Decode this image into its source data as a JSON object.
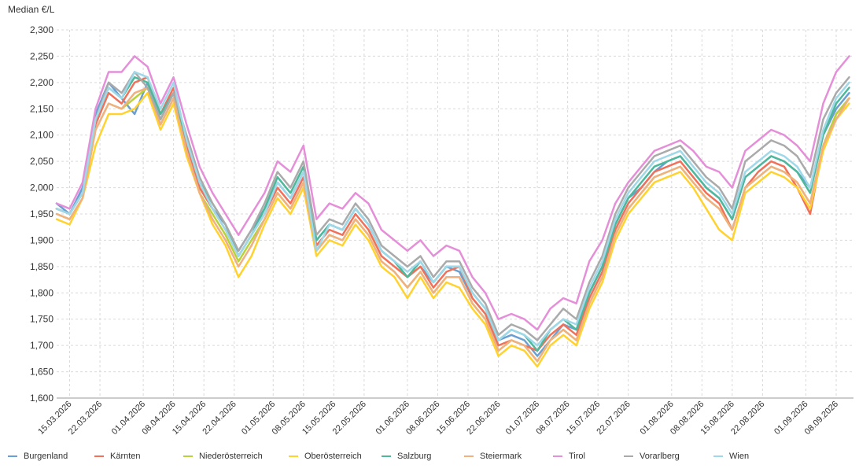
{
  "chart_data": {
    "type": "line",
    "ylabel": "Median €/L",
    "ylim": [
      1.6,
      2.3
    ],
    "yticks": [
      1.6,
      1.65,
      1.7,
      1.75,
      1.8,
      1.85,
      1.9,
      1.95,
      2.0,
      2.05,
      2.1,
      2.15,
      2.2,
      2.25,
      2.3
    ],
    "ytick_labels": [
      "1,600",
      "1,650",
      "1,700",
      "1,750",
      "1,800",
      "1,850",
      "1,900",
      "1,950",
      "2,000",
      "2,050",
      "2,100",
      "2,150",
      "2,200",
      "2,250",
      "2,300"
    ],
    "xlim": [
      "2026-03-12",
      "2026-09-12"
    ],
    "xticks": [
      "2026-03-15",
      "2026-03-22",
      "2026-04-01",
      "2026-04-08",
      "2026-04-15",
      "2026-04-22",
      "2026-05-01",
      "2026-05-08",
      "2026-05-15",
      "2026-05-22",
      "2026-06-01",
      "2026-06-08",
      "2026-06-15",
      "2026-06-22",
      "2026-07-01",
      "2026-07-08",
      "2026-07-15",
      "2026-07-22",
      "2026-08-01",
      "2026-08-08",
      "2026-08-15",
      "2026-08-22",
      "2026-09-01",
      "2026-09-08"
    ],
    "xtick_labels": [
      "15.03.2026",
      "22.03.2026",
      "01.04.2026",
      "08.04.2026",
      "15.04.2026",
      "22.04.2026",
      "01.05.2026",
      "08.05.2026",
      "15.05.2026",
      "22.05.2026",
      "01.06.2026",
      "08.06.2026",
      "15.06.2026",
      "22.06.2026",
      "01.07.2026",
      "08.07.2026",
      "15.07.2026",
      "22.07.2026",
      "01.08.2026",
      "08.08.2026",
      "15.08.2026",
      "22.08.2026",
      "01.09.2026",
      "08.09.2026"
    ],
    "grid": true,
    "legend_position": "bottom",
    "x": [
      "2026-03-12",
      "2026-03-15",
      "2026-03-18",
      "2026-03-21",
      "2026-03-24",
      "2026-03-27",
      "2026-03-30",
      "2026-04-02",
      "2026-04-05",
      "2026-04-08",
      "2026-04-11",
      "2026-04-14",
      "2026-04-17",
      "2026-04-20",
      "2026-04-23",
      "2026-04-26",
      "2026-04-29",
      "2026-05-02",
      "2026-05-05",
      "2026-05-08",
      "2026-05-11",
      "2026-05-14",
      "2026-05-17",
      "2026-05-20",
      "2026-05-23",
      "2026-05-26",
      "2026-05-29",
      "2026-06-01",
      "2026-06-04",
      "2026-06-07",
      "2026-06-10",
      "2026-06-13",
      "2026-06-16",
      "2026-06-19",
      "2026-06-22",
      "2026-06-25",
      "2026-06-28",
      "2026-07-01",
      "2026-07-04",
      "2026-07-07",
      "2026-07-10",
      "2026-07-13",
      "2026-07-16",
      "2026-07-19",
      "2026-07-22",
      "2026-07-25",
      "2026-07-28",
      "2026-07-31",
      "2026-08-03",
      "2026-08-06",
      "2026-08-09",
      "2026-08-12",
      "2026-08-15",
      "2026-08-18",
      "2026-08-21",
      "2026-08-24",
      "2026-08-27",
      "2026-08-30",
      "2026-09-02",
      "2026-09-05",
      "2026-09-08",
      "2026-09-11"
    ],
    "series": [
      {
        "name": "Burgenland",
        "color": "#6a9fd3",
        "values": [
          1.97,
          1.95,
          2.0,
          2.14,
          2.2,
          2.17,
          2.14,
          2.2,
          2.13,
          2.18,
          2.08,
          2.0,
          1.96,
          1.93,
          1.88,
          1.92,
          1.96,
          2.01,
          1.98,
          2.03,
          1.9,
          1.93,
          1.92,
          1.96,
          1.93,
          1.88,
          1.86,
          1.83,
          1.85,
          1.82,
          1.85,
          1.84,
          1.79,
          1.76,
          1.71,
          1.72,
          1.71,
          1.68,
          1.71,
          1.74,
          1.73,
          1.8,
          1.85,
          1.93,
          1.98,
          2.0,
          2.03,
          2.05,
          2.06,
          2.03,
          2.0,
          1.98,
          1.94,
          2.02,
          2.04,
          2.06,
          2.05,
          2.03,
          2.0,
          2.1,
          2.15,
          2.18
        ]
      },
      {
        "name": "Kärnten",
        "color": "#f0705a",
        "values": [
          1.96,
          1.95,
          1.99,
          2.12,
          2.18,
          2.16,
          2.2,
          2.21,
          2.14,
          2.19,
          2.08,
          2.0,
          1.96,
          1.92,
          1.87,
          1.91,
          1.95,
          2.0,
          1.97,
          2.02,
          1.89,
          1.92,
          1.91,
          1.95,
          1.92,
          1.87,
          1.85,
          1.83,
          1.85,
          1.81,
          1.84,
          1.85,
          1.79,
          1.76,
          1.7,
          1.71,
          1.7,
          1.69,
          1.72,
          1.74,
          1.72,
          1.79,
          1.84,
          1.92,
          1.97,
          2.0,
          2.03,
          2.04,
          2.05,
          2.02,
          1.99,
          1.97,
          1.92,
          2.0,
          2.03,
          2.05,
          2.04,
          2.0,
          1.95,
          2.08,
          2.14,
          2.17
        ]
      },
      {
        "name": "Niederösterreich",
        "color": "#b8d23c",
        "values": [
          1.95,
          1.94,
          1.98,
          2.11,
          2.16,
          2.15,
          2.17,
          2.19,
          2.12,
          2.17,
          2.07,
          1.99,
          1.95,
          1.91,
          1.86,
          1.9,
          1.94,
          1.99,
          1.96,
          2.01,
          1.88,
          1.91,
          1.9,
          1.94,
          1.91,
          1.86,
          1.84,
          1.81,
          1.84,
          1.8,
          1.83,
          1.83,
          1.78,
          1.75,
          1.69,
          1.71,
          1.7,
          1.67,
          1.71,
          1.73,
          1.71,
          1.78,
          1.83,
          1.91,
          1.96,
          1.99,
          2.02,
          2.03,
          2.04,
          2.01,
          1.98,
          1.96,
          1.92,
          2.0,
          2.02,
          2.04,
          2.03,
          2.01,
          1.97,
          2.08,
          2.14,
          2.17
        ]
      },
      {
        "name": "Oberösterreich",
        "color": "#ffd22e",
        "values": [
          1.94,
          1.93,
          1.98,
          2.08,
          2.14,
          2.14,
          2.15,
          2.18,
          2.11,
          2.16,
          2.06,
          1.99,
          1.93,
          1.89,
          1.83,
          1.87,
          1.93,
          1.98,
          1.95,
          2.0,
          1.87,
          1.9,
          1.89,
          1.93,
          1.9,
          1.85,
          1.83,
          1.79,
          1.83,
          1.79,
          1.82,
          1.81,
          1.77,
          1.74,
          1.68,
          1.7,
          1.69,
          1.66,
          1.7,
          1.72,
          1.7,
          1.77,
          1.82,
          1.9,
          1.95,
          1.98,
          2.01,
          2.02,
          2.03,
          2.0,
          1.96,
          1.92,
          1.9,
          1.99,
          2.01,
          2.03,
          2.02,
          2.0,
          1.96,
          2.07,
          2.13,
          2.16
        ]
      },
      {
        "name": "Salzburg",
        "color": "#4db89a",
        "values": [
          1.96,
          1.95,
          1.99,
          2.13,
          2.19,
          2.17,
          2.21,
          2.2,
          2.14,
          2.18,
          2.09,
          2.01,
          1.97,
          1.93,
          1.87,
          1.91,
          1.96,
          2.02,
          1.99,
          2.04,
          1.9,
          1.93,
          1.92,
          1.96,
          1.93,
          1.88,
          1.86,
          1.83,
          1.86,
          1.82,
          1.85,
          1.85,
          1.8,
          1.77,
          1.71,
          1.73,
          1.72,
          1.69,
          1.73,
          1.75,
          1.73,
          1.8,
          1.85,
          1.93,
          1.98,
          2.01,
          2.04,
          2.05,
          2.06,
          2.03,
          2.0,
          1.98,
          1.94,
          2.02,
          2.04,
          2.06,
          2.05,
          2.03,
          1.99,
          2.1,
          2.16,
          2.19
        ]
      },
      {
        "name": "Steiermark",
        "color": "#f0b080",
        "values": [
          1.95,
          1.94,
          1.98,
          2.11,
          2.16,
          2.15,
          2.18,
          2.19,
          2.12,
          2.17,
          2.07,
          1.99,
          1.94,
          1.9,
          1.85,
          1.89,
          1.94,
          1.99,
          1.96,
          2.01,
          1.88,
          1.91,
          1.9,
          1.94,
          1.91,
          1.86,
          1.84,
          1.81,
          1.84,
          1.8,
          1.83,
          1.83,
          1.78,
          1.75,
          1.69,
          1.71,
          1.7,
          1.67,
          1.71,
          1.73,
          1.71,
          1.78,
          1.83,
          1.91,
          1.96,
          1.99,
          2.02,
          2.03,
          2.04,
          2.01,
          1.98,
          1.96,
          1.92,
          2.0,
          2.02,
          2.04,
          2.03,
          2.01,
          1.97,
          2.08,
          2.13,
          2.17
        ]
      },
      {
        "name": "Tirol",
        "color": "#e48fd8",
        "values": [
          1.97,
          1.96,
          2.01,
          2.15,
          2.22,
          2.22,
          2.25,
          2.23,
          2.16,
          2.21,
          2.12,
          2.04,
          1.99,
          1.95,
          1.91,
          1.95,
          1.99,
          2.05,
          2.03,
          2.08,
          1.94,
          1.97,
          1.96,
          1.99,
          1.97,
          1.92,
          1.9,
          1.88,
          1.9,
          1.87,
          1.89,
          1.88,
          1.83,
          1.8,
          1.75,
          1.76,
          1.75,
          1.73,
          1.77,
          1.79,
          1.78,
          1.86,
          1.9,
          1.97,
          2.01,
          2.04,
          2.07,
          2.08,
          2.09,
          2.07,
          2.04,
          2.03,
          2.0,
          2.07,
          2.09,
          2.11,
          2.1,
          2.08,
          2.05,
          2.16,
          2.22,
          2.25
        ]
      },
      {
        "name": "Vorarlberg",
        "color": "#aaaaaa",
        "values": [
          1.96,
          1.95,
          1.99,
          2.13,
          2.2,
          2.18,
          2.22,
          2.19,
          2.13,
          2.18,
          2.1,
          2.02,
          1.97,
          1.93,
          1.88,
          1.92,
          1.97,
          2.03,
          2.0,
          2.05,
          1.91,
          1.94,
          1.93,
          1.97,
          1.94,
          1.89,
          1.87,
          1.85,
          1.87,
          1.83,
          1.86,
          1.86,
          1.81,
          1.78,
          1.72,
          1.74,
          1.73,
          1.71,
          1.74,
          1.77,
          1.75,
          1.82,
          1.87,
          1.95,
          2.0,
          2.03,
          2.06,
          2.07,
          2.08,
          2.05,
          2.02,
          2.0,
          1.96,
          2.05,
          2.07,
          2.09,
          2.08,
          2.06,
          2.02,
          2.13,
          2.18,
          2.21
        ]
      },
      {
        "name": "Wien",
        "color": "#9fd8e8",
        "values": [
          1.96,
          1.95,
          1.99,
          2.13,
          2.19,
          2.17,
          2.22,
          2.21,
          2.15,
          2.2,
          2.09,
          2.01,
          1.96,
          1.92,
          1.87,
          1.91,
          1.95,
          2.01,
          1.98,
          2.03,
          1.88,
          1.93,
          1.92,
          1.96,
          1.93,
          1.88,
          1.86,
          1.84,
          1.86,
          1.82,
          1.85,
          1.85,
          1.8,
          1.77,
          1.71,
          1.73,
          1.72,
          1.7,
          1.73,
          1.75,
          1.74,
          1.81,
          1.86,
          1.94,
          1.99,
          2.02,
          2.05,
          2.06,
          2.07,
          2.04,
          2.01,
          1.99,
          1.95,
          2.03,
          2.05,
          2.07,
          2.06,
          2.04,
          2.0,
          2.11,
          2.17,
          2.2
        ]
      }
    ]
  }
}
